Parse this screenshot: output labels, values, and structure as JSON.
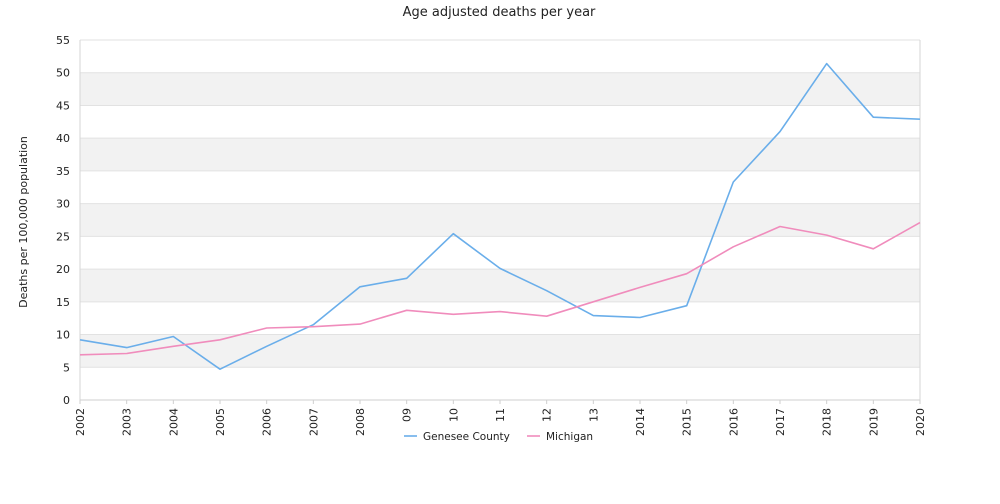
{
  "chart_data": {
    "type": "line",
    "title": "Age adjusted deaths per year",
    "xlabel": "",
    "ylabel": "Deaths per 100,000 population",
    "categories": [
      "2002",
      "2003",
      "2004",
      "2005",
      "2006",
      "2007",
      "2008",
      "09",
      "10",
      "11",
      "12",
      "13",
      "2014",
      "2015",
      "2016",
      "2017",
      "2018",
      "2019",
      "2020"
    ],
    "ylim": [
      0,
      55
    ],
    "yticks": [
      0,
      5,
      10,
      15,
      20,
      25,
      30,
      35,
      40,
      45,
      50,
      55
    ],
    "grid": "alternating horizontal bands",
    "legend_position": "bottom-center",
    "series": [
      {
        "name": "Genesee County",
        "color": "#6aaeea",
        "values": [
          9.2,
          8.0,
          9.7,
          4.7,
          8.2,
          11.5,
          17.3,
          18.6,
          25.4,
          20.1,
          16.7,
          12.9,
          12.6,
          14.4,
          33.3,
          41.0,
          51.4,
          43.2,
          42.9
        ]
      },
      {
        "name": "Michigan",
        "color": "#f08cbc",
        "values": [
          6.9,
          7.1,
          8.2,
          9.2,
          11.0,
          11.2,
          11.6,
          13.7,
          13.1,
          13.5,
          12.8,
          15.0,
          17.2,
          19.3,
          23.4,
          26.5,
          25.2,
          23.1,
          27.1
        ]
      }
    ]
  }
}
